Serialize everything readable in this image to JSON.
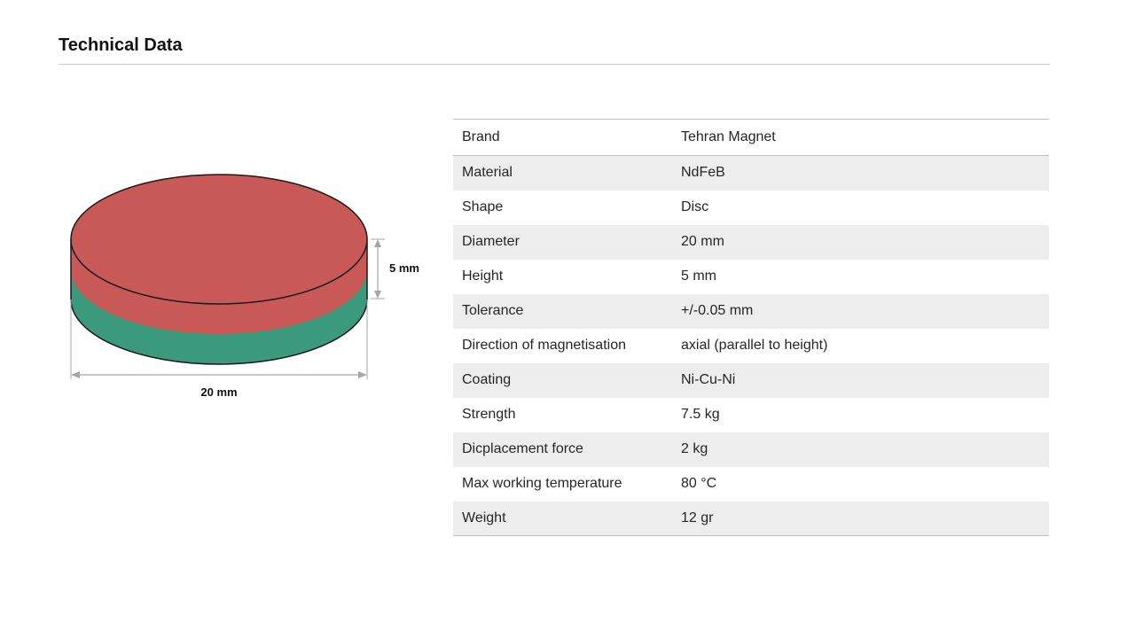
{
  "page": {
    "title": "Technical Data"
  },
  "figure": {
    "height_label": "5 mm",
    "diameter_label": "20 mm",
    "colors": {
      "north_face": "#c95957",
      "south_face": "#3b9a7c",
      "outline": "#1a1a1a",
      "dimension_line": "#a6a6a6"
    }
  },
  "specs": [
    {
      "label": "Brand",
      "value": "Tehran Magnet"
    },
    {
      "label": "Material",
      "value": "NdFeB"
    },
    {
      "label": "Shape",
      "value": "Disc"
    },
    {
      "label": "Diameter",
      "value": "20 mm"
    },
    {
      "label": "Height",
      "value": "5 mm"
    },
    {
      "label": "Tolerance",
      "value": "+/-0.05 mm"
    },
    {
      "label": "Direction of magnetisation",
      "value": "axial (parallel to height)"
    },
    {
      "label": "Coating",
      "value": "Ni-Cu-Ni"
    },
    {
      "label": "Strength",
      "value": "7.5 kg"
    },
    {
      "label": "Dicplacement force",
      "value": "2 kg"
    },
    {
      "label": "Max working temperature",
      "value": "80 °C"
    },
    {
      "label": "Weight",
      "value": "12 gr"
    }
  ]
}
